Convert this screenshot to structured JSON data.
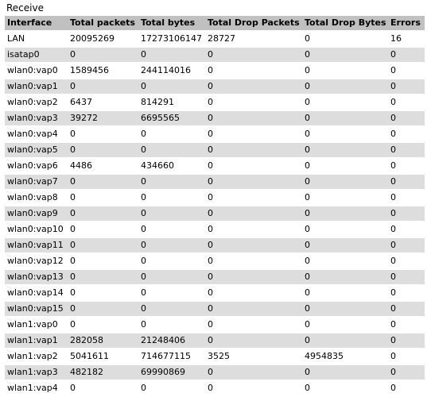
{
  "section_title": "Receive",
  "columns": [
    "Interface",
    "Total packets",
    "Total bytes",
    "Total Drop Packets",
    "Total Drop Bytes",
    "Errors"
  ],
  "rows": [
    [
      "LAN",
      "20095269",
      "17273106147",
      "28727",
      "0",
      "16"
    ],
    [
      "isatap0",
      "0",
      "0",
      "0",
      "0",
      "0"
    ],
    [
      "wlan0:vap0",
      "1589456",
      "244114016",
      "0",
      "0",
      "0"
    ],
    [
      "wlan0:vap1",
      "0",
      "0",
      "0",
      "0",
      "0"
    ],
    [
      "wlan0:vap2",
      "6437",
      "814291",
      "0",
      "0",
      "0"
    ],
    [
      "wlan0:vap3",
      "39272",
      "6695565",
      "0",
      "0",
      "0"
    ],
    [
      "wlan0:vap4",
      "0",
      "0",
      "0",
      "0",
      "0"
    ],
    [
      "wlan0:vap5",
      "0",
      "0",
      "0",
      "0",
      "0"
    ],
    [
      "wlan0:vap6",
      "4486",
      "434660",
      "0",
      "0",
      "0"
    ],
    [
      "wlan0:vap7",
      "0",
      "0",
      "0",
      "0",
      "0"
    ],
    [
      "wlan0:vap8",
      "0",
      "0",
      "0",
      "0",
      "0"
    ],
    [
      "wlan0:vap9",
      "0",
      "0",
      "0",
      "0",
      "0"
    ],
    [
      "wlan0:vap10",
      "0",
      "0",
      "0",
      "0",
      "0"
    ],
    [
      "wlan0:vap11",
      "0",
      "0",
      "0",
      "0",
      "0"
    ],
    [
      "wlan0:vap12",
      "0",
      "0",
      "0",
      "0",
      "0"
    ],
    [
      "wlan0:vap13",
      "0",
      "0",
      "0",
      "0",
      "0"
    ],
    [
      "wlan0:vap14",
      "0",
      "0",
      "0",
      "0",
      "0"
    ],
    [
      "wlan0:vap15",
      "0",
      "0",
      "0",
      "0",
      "0"
    ],
    [
      "wlan1:vap0",
      "0",
      "0",
      "0",
      "0",
      "0"
    ],
    [
      "wlan1:vap1",
      "282058",
      "21248406",
      "0",
      "0",
      "0"
    ],
    [
      "wlan1:vap2",
      "5041611",
      "714677115",
      "3525",
      "4954835",
      "0"
    ],
    [
      "wlan1:vap3",
      "482182",
      "69990869",
      "0",
      "0",
      "0"
    ],
    [
      "wlan1:vap4",
      "0",
      "0",
      "0",
      "0",
      "0"
    ]
  ],
  "colors": {
    "header_bg": "#c0c0c0",
    "row_even_bg": "#ffffff",
    "row_odd_bg": "#dddddd",
    "text": "#000000"
  }
}
